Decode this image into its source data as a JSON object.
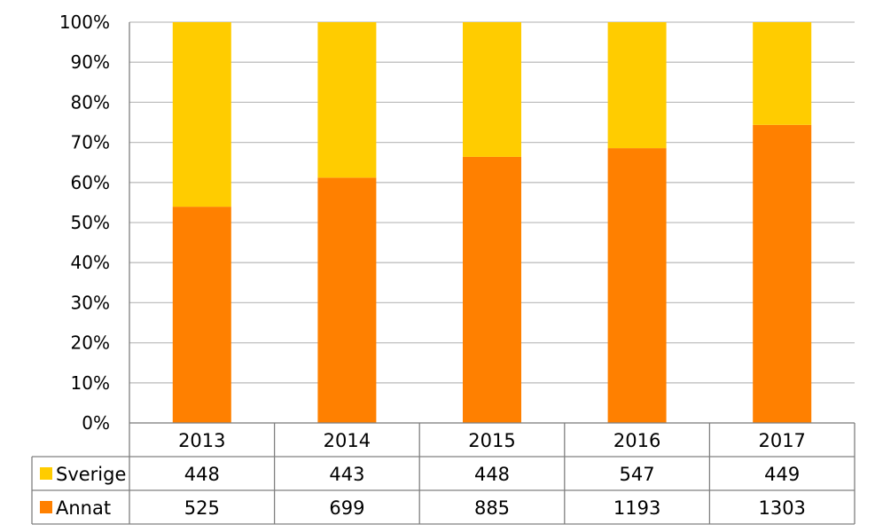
{
  "chart_data": {
    "type": "bar",
    "stacked": true,
    "normalized": true,
    "title": "",
    "xlabel": "",
    "ylabel": "",
    "categories": [
      "2013",
      "2014",
      "2015",
      "2016",
      "2017"
    ],
    "series": [
      {
        "name": "Annat",
        "values": [
          525,
          699,
          885,
          1193,
          1303
        ],
        "color": "#FF8000"
      },
      {
        "name": "Sverige",
        "values": [
          448,
          443,
          448,
          547,
          449
        ],
        "color": "#FFCC00"
      }
    ],
    "ylim": [
      0,
      100
    ],
    "y_ticks": [
      "0%",
      "10%",
      "20%",
      "30%",
      "40%",
      "50%",
      "60%",
      "70%",
      "80%",
      "90%",
      "100%"
    ],
    "grid": true,
    "legend": "data-table-rows",
    "table_rows": [
      "Sverige",
      "Annat"
    ]
  }
}
